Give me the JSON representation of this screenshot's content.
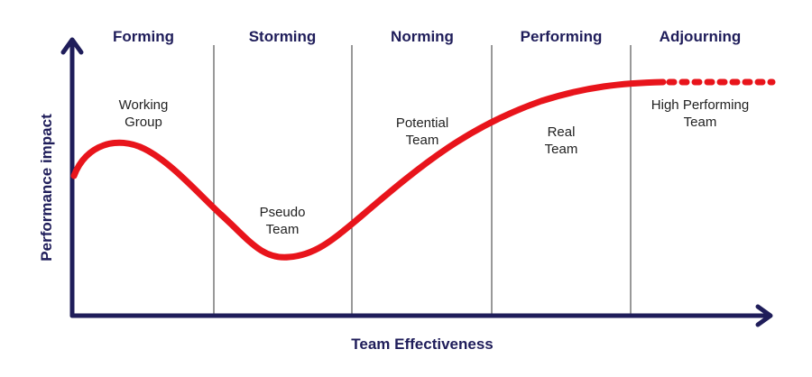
{
  "axes": {
    "x_label": "Team Effectiveness",
    "y_label": "Performance impact"
  },
  "stages": [
    "Forming",
    "Storming",
    "Norming",
    "Performing",
    "Adjourning"
  ],
  "curve_labels": [
    [
      "Working",
      "Group"
    ],
    [
      "Pseudo",
      "Team"
    ],
    [
      "Potential",
      "Team"
    ],
    [
      "Real",
      "Team"
    ],
    [
      "High Performing",
      "Team"
    ]
  ]
}
